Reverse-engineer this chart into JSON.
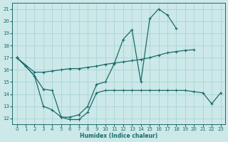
{
  "xlabel": "Humidex (Indice chaleur)",
  "bg_color": "#cce8e8",
  "grid_color": "#aad4d4",
  "line_color": "#1a6b6b",
  "xlim": [
    -0.5,
    23.5
  ],
  "ylim": [
    11.5,
    21.5
  ],
  "yticks": [
    12,
    13,
    14,
    15,
    16,
    17,
    18,
    19,
    20,
    21
  ],
  "xticks": [
    0,
    1,
    2,
    3,
    4,
    5,
    6,
    7,
    8,
    9,
    10,
    11,
    12,
    13,
    14,
    15,
    16,
    17,
    18,
    19,
    20,
    21,
    22,
    23
  ],
  "line_top_x": [
    0,
    1,
    2,
    3,
    4,
    5,
    6,
    7,
    8,
    9,
    10,
    11,
    12,
    13,
    14,
    15,
    16,
    17,
    18,
    19,
    20,
    21,
    22,
    23
  ],
  "line_top_y": [
    17.0,
    16.3,
    15.5,
    13.0,
    12.7,
    12.1,
    12.1,
    12.3,
    13.0,
    14.8,
    15.0,
    16.5,
    18.5,
    19.3,
    15.0,
    20.2,
    21.0,
    20.5,
    19.4,
    null,
    null,
    null,
    null,
    null
  ],
  "line_mid_x": [
    0,
    2,
    3,
    4,
    5,
    6,
    7,
    8,
    9,
    10,
    11,
    12,
    13,
    14,
    15,
    16,
    17,
    18,
    19,
    20
  ],
  "line_mid_y": [
    17.0,
    15.8,
    15.8,
    15.9,
    16.0,
    16.1,
    16.1,
    16.2,
    16.3,
    16.45,
    16.55,
    16.65,
    16.75,
    16.85,
    17.0,
    17.2,
    17.4,
    17.5,
    17.6,
    17.65
  ],
  "line_bot_x": [
    0,
    1,
    2,
    3,
    4,
    5,
    6,
    7,
    8,
    9,
    10,
    11,
    12,
    13,
    14,
    15,
    16,
    17,
    18,
    19,
    20,
    21,
    22,
    23
  ],
  "line_bot_y": [
    17.0,
    16.3,
    15.5,
    14.4,
    14.3,
    12.1,
    11.9,
    11.9,
    12.5,
    14.1,
    14.3,
    14.3,
    14.3,
    14.3,
    14.3,
    14.3,
    14.3,
    14.3,
    14.3,
    14.3,
    14.2,
    14.1,
    13.2,
    14.1
  ]
}
